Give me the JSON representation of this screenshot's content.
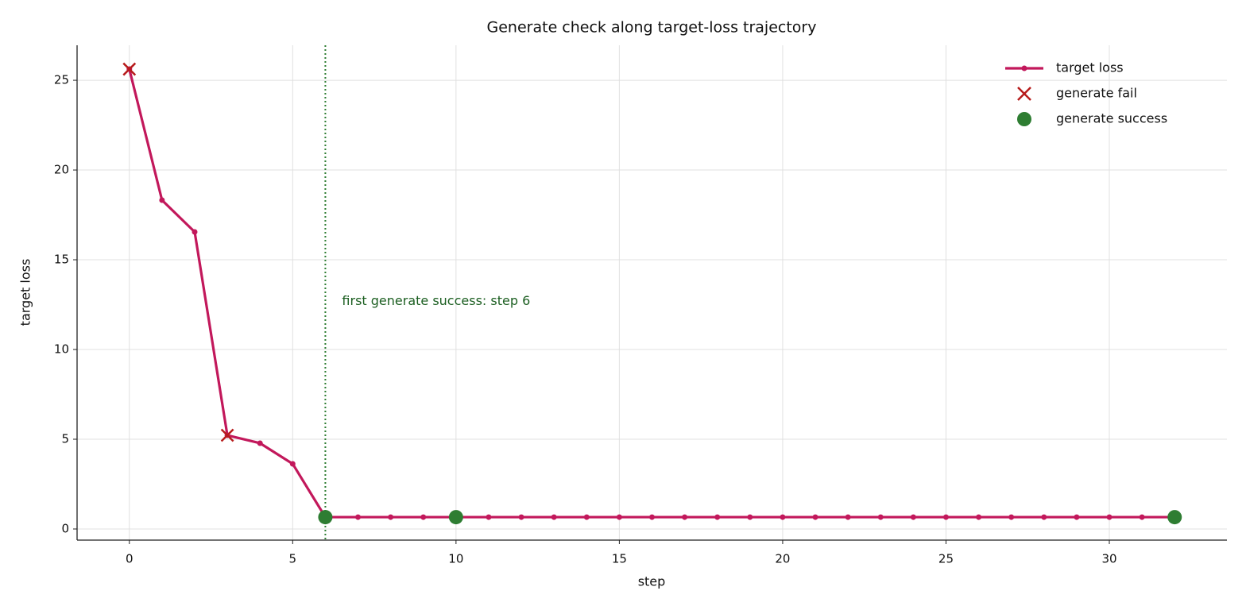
{
  "chart_data": {
    "type": "line",
    "title": "Generate check along target-loss trajectory",
    "x_label": "step",
    "y_label": "target loss",
    "xlim": [
      -1.6,
      33.6
    ],
    "ylim": [
      -0.62,
      26.95
    ],
    "xticks": [
      0,
      5,
      10,
      15,
      20,
      25,
      30
    ],
    "yticks": [
      0,
      5,
      10,
      15,
      20,
      25
    ],
    "grid": true,
    "legend": "upper right",
    "series": [
      {
        "name": "target loss",
        "kind": "line",
        "color": "#c2185b",
        "x": [
          0,
          1,
          2,
          3,
          4,
          5,
          6,
          7,
          8,
          9,
          10,
          11,
          12,
          13,
          14,
          15,
          16,
          17,
          18,
          19,
          20,
          21,
          22,
          23,
          24,
          25,
          26,
          27,
          28,
          29,
          30,
          31,
          32
        ],
        "values": [
          25.62,
          18.32,
          16.55,
          5.22,
          4.78,
          3.63,
          0.66,
          0.66,
          0.66,
          0.66,
          0.66,
          0.66,
          0.66,
          0.66,
          0.66,
          0.66,
          0.66,
          0.66,
          0.66,
          0.66,
          0.66,
          0.66,
          0.66,
          0.66,
          0.66,
          0.66,
          0.66,
          0.66,
          0.66,
          0.66,
          0.66,
          0.66,
          0.66
        ]
      },
      {
        "name": "generate fail",
        "kind": "cross",
        "color": "#b71c1c",
        "x": [
          0,
          3
        ],
        "values": [
          25.62,
          5.22
        ]
      },
      {
        "name": "generate success",
        "kind": "dot",
        "color": "#2e7d32",
        "x": [
          6,
          10,
          32
        ],
        "values": [
          0.66,
          0.66,
          0.66
        ]
      }
    ],
    "vline": {
      "x": 6,
      "color": "#2e7d32"
    },
    "annotation": "first generate success: step 6"
  }
}
